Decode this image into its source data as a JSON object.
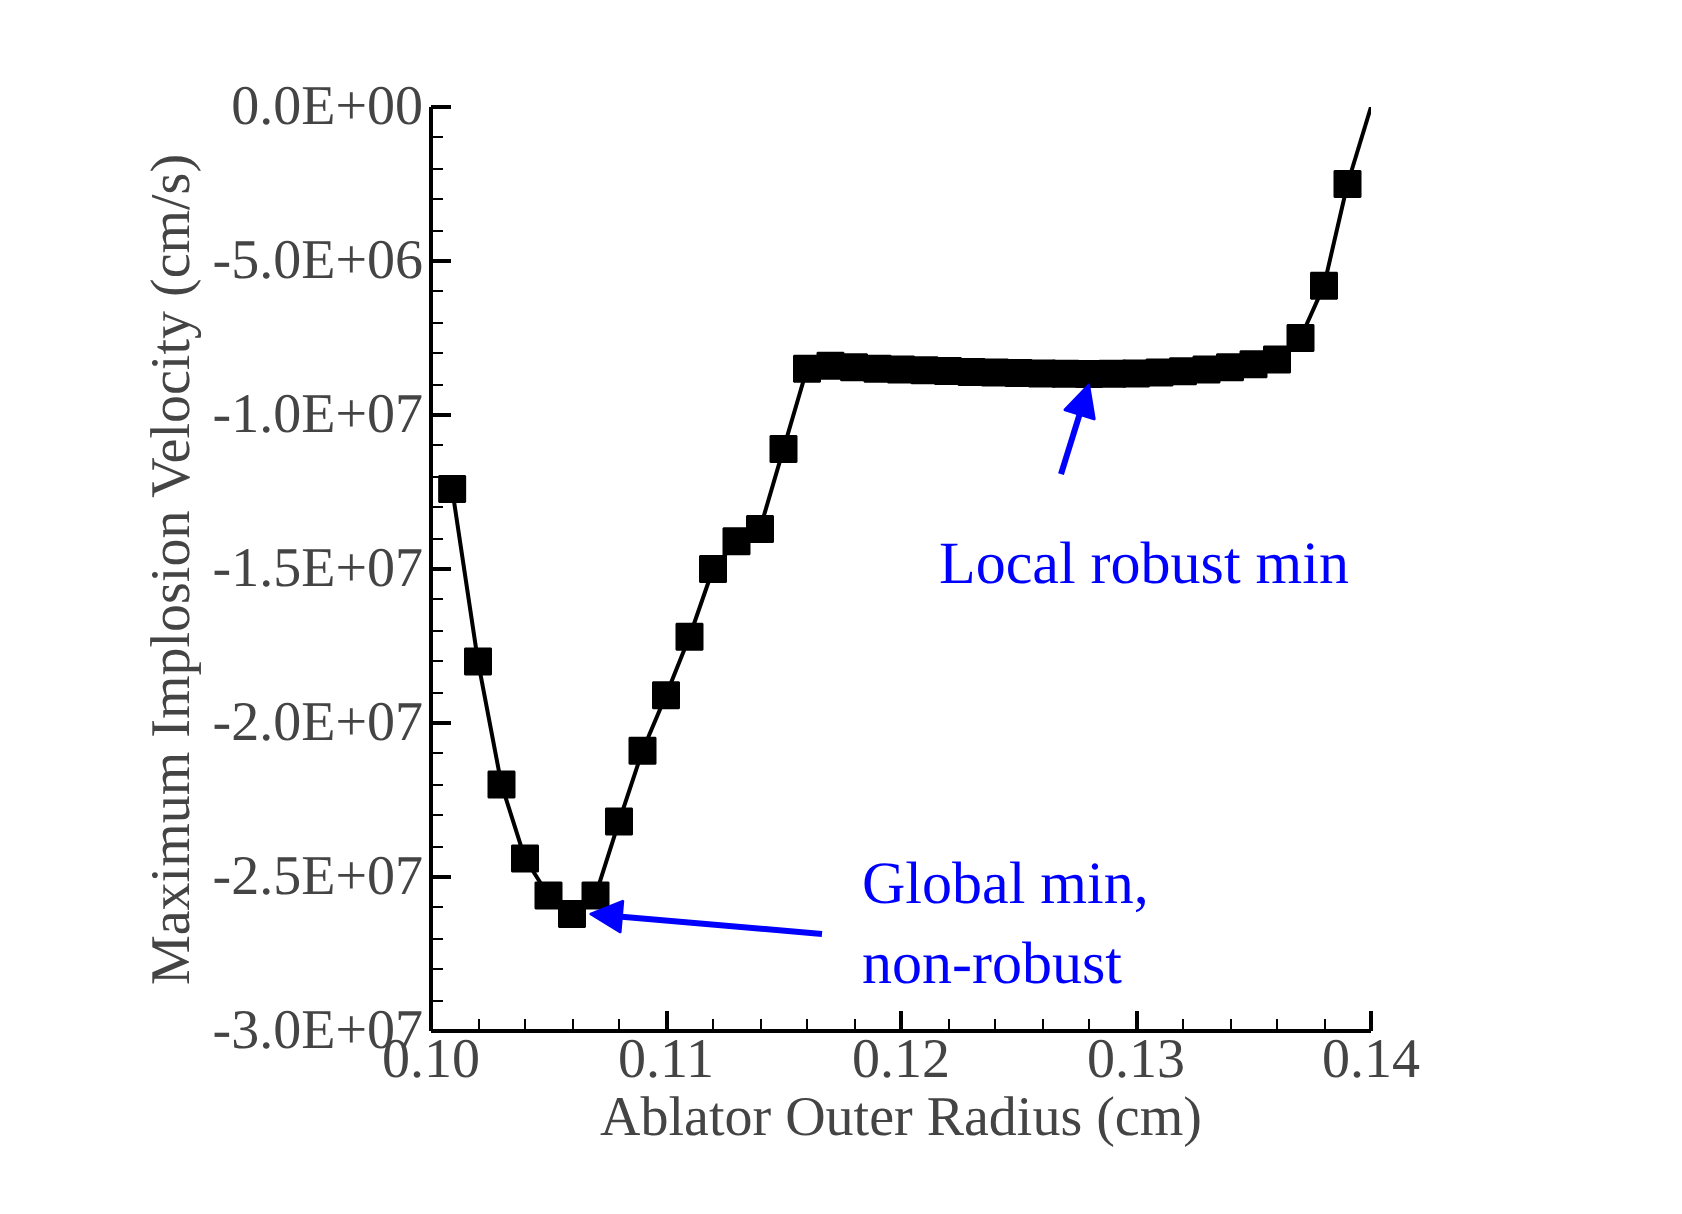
{
  "chart_data": {
    "type": "line",
    "xlabel": "Ablator Outer Radius (cm)",
    "ylabel": "Maximum Implosion Velocity (cm/s)",
    "xlim": [
      0.1,
      0.14
    ],
    "ylim": [
      -30000000,
      0
    ],
    "xticks": [
      {
        "value": 0.1,
        "label": "0.10"
      },
      {
        "value": 0.11,
        "label": "0.11"
      },
      {
        "value": 0.12,
        "label": "0.12"
      },
      {
        "value": 0.13,
        "label": "0.13"
      },
      {
        "value": 0.14,
        "label": "0.14"
      }
    ],
    "yticks": [
      {
        "value": 0,
        "label": "0.0E+00"
      },
      {
        "value": -5000000,
        "label": "-5.0E+06"
      },
      {
        "value": -10000000,
        "label": "-1.0E+07"
      },
      {
        "value": -15000000,
        "label": "-1.5E+07"
      },
      {
        "value": -20000000,
        "label": "-2.0E+07"
      },
      {
        "value": -25000000,
        "label": "-2.5E+07"
      },
      {
        "value": -30000000,
        "label": "-3.0E+07"
      }
    ],
    "grid": false,
    "series": [
      {
        "color": "#000000",
        "marker": "square",
        "line_style": "solid",
        "x": [
          0.1009,
          0.102,
          0.103,
          0.104,
          0.105,
          0.106,
          0.107,
          0.108,
          0.109,
          0.11,
          0.111,
          0.112,
          0.113,
          0.114,
          0.115,
          0.116,
          0.117,
          0.118,
          0.119,
          0.12,
          0.121,
          0.122,
          0.123,
          0.124,
          0.125,
          0.126,
          0.127,
          0.128,
          0.129,
          0.13,
          0.131,
          0.132,
          0.133,
          0.134,
          0.135,
          0.136,
          0.137,
          0.138,
          0.139
        ],
        "values": [
          -12400000,
          -18000000,
          -22000000,
          -24400000,
          -25600000,
          -26200000,
          -25600000,
          -23200000,
          -20900000,
          -19100000,
          -17200000,
          -15000000,
          -14100000,
          -13700000,
          -11100000,
          -8500000,
          -8400000,
          -8450000,
          -8500000,
          -8520000,
          -8550000,
          -8570000,
          -8600000,
          -8620000,
          -8640000,
          -8650000,
          -8660000,
          -8670000,
          -8660000,
          -8650000,
          -8620000,
          -8580000,
          -8520000,
          -8450000,
          -8350000,
          -8200000,
          -7500000,
          -5800000,
          -2500000
        ]
      },
      {
        "color": "#000000",
        "marker": "none",
        "line_style": "solid",
        "x": [
          0.139,
          0.14
        ],
        "values": [
          -2500000,
          0
        ]
      }
    ],
    "annotations": [
      {
        "text": "Local robust min",
        "x": 0.128,
        "y": -9000000
      },
      {
        "text": "Global min, non-robust",
        "x": 0.106,
        "y": -26200000
      }
    ]
  }
}
